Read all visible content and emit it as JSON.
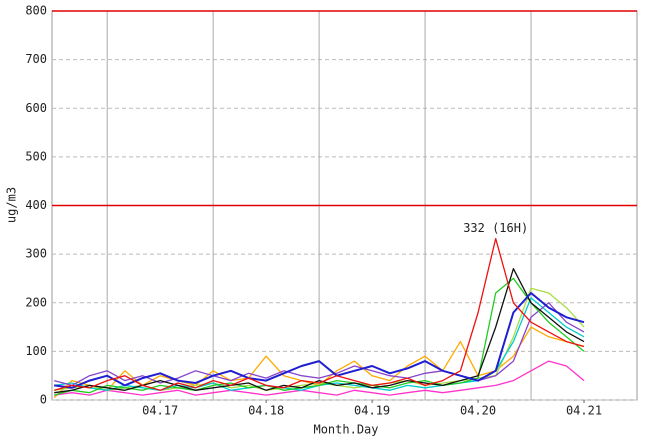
{
  "chart_data": {
    "type": "line",
    "ylabel": "ug/m3",
    "xlabel": "Month.Day",
    "ylim": [
      0,
      800
    ],
    "yticks": [
      0,
      100,
      200,
      300,
      400,
      500,
      600,
      700,
      800
    ],
    "xlim": [
      -12.5,
      120
    ],
    "xticks": [
      {
        "value": 12,
        "label": "04.17"
      },
      {
        "value": 36,
        "label": "04.18"
      },
      {
        "value": 60,
        "label": "04.19"
      },
      {
        "value": 84,
        "label": "04.20"
      },
      {
        "value": 108,
        "label": "04.21"
      }
    ],
    "xgrid": [
      0,
      24,
      48,
      72,
      96
    ],
    "grid": true,
    "hlines": [
      400,
      800
    ],
    "hline_color": "#e00000",
    "annotation": {
      "text": "332 (16H)",
      "x": 88,
      "y": 332
    },
    "x": [
      -12,
      -8,
      -4,
      0,
      4,
      8,
      12,
      16,
      20,
      24,
      28,
      32,
      36,
      40,
      44,
      48,
      52,
      56,
      60,
      64,
      68,
      72,
      76,
      80,
      84,
      88,
      92,
      96,
      100,
      104,
      108
    ],
    "series": [
      {
        "color": "#ffaa00",
        "values": [
          5,
          40,
          30,
          20,
          60,
          30,
          50,
          40,
          30,
          60,
          40,
          45,
          90,
          50,
          40,
          30,
          60,
          80,
          50,
          40,
          70,
          90,
          60,
          120,
          50,
          60,
          90,
          150,
          130,
          120,
          110
        ]
      },
      {
        "color": "#ff33cc",
        "values": [
          10,
          15,
          10,
          20,
          15,
          10,
          15,
          20,
          10,
          15,
          20,
          15,
          10,
          15,
          20,
          15,
          10,
          20,
          15,
          10,
          15,
          20,
          15,
          20,
          25,
          30,
          40,
          60,
          80,
          70,
          40
        ]
      },
      {
        "color": "#aadd44",
        "values": [
          20,
          25,
          30,
          20,
          25,
          30,
          20,
          25,
          30,
          35,
          25,
          30,
          20,
          25,
          30,
          35,
          30,
          25,
          30,
          35,
          40,
          30,
          35,
          40,
          45,
          50,
          130,
          230,
          220,
          190,
          150
        ]
      },
      {
        "color": "#00cccc",
        "values": [
          30,
          35,
          25,
          20,
          30,
          25,
          20,
          30,
          25,
          35,
          20,
          25,
          30,
          25,
          20,
          30,
          35,
          30,
          25,
          20,
          30,
          25,
          30,
          35,
          40,
          60,
          120,
          210,
          180,
          150,
          130
        ]
      },
      {
        "color": "#8844cc",
        "values": [
          40,
          30,
          50,
          60,
          40,
          50,
          35,
          45,
          60,
          50,
          40,
          55,
          45,
          60,
          50,
          45,
          55,
          70,
          60,
          50,
          45,
          55,
          60,
          50,
          40,
          50,
          80,
          170,
          200,
          160,
          140
        ]
      },
      {
        "color": "#22cc22",
        "values": [
          10,
          20,
          15,
          30,
          25,
          20,
          30,
          25,
          20,
          30,
          35,
          25,
          30,
          20,
          25,
          30,
          40,
          35,
          30,
          25,
          35,
          40,
          30,
          35,
          45,
          220,
          250,
          200,
          160,
          130,
          100
        ]
      },
      {
        "color": "#111111",
        "values": [
          15,
          20,
          30,
          25,
          20,
          30,
          40,
          30,
          20,
          25,
          30,
          35,
          20,
          30,
          25,
          40,
          30,
          35,
          25,
          30,
          40,
          35,
          30,
          40,
          50,
          150,
          270,
          200,
          170,
          140,
          120
        ]
      },
      {
        "color": "#1f1fd0",
        "values": [
          30,
          25,
          40,
          50,
          30,
          45,
          55,
          40,
          35,
          50,
          60,
          45,
          40,
          55,
          70,
          80,
          50,
          60,
          70,
          55,
          65,
          80,
          60,
          50,
          40,
          60,
          180,
          220,
          190,
          170,
          160
        ]
      },
      {
        "color": "#ee1111",
        "values": [
          20,
          30,
          25,
          40,
          50,
          30,
          20,
          35,
          25,
          40,
          30,
          45,
          30,
          25,
          40,
          35,
          50,
          40,
          30,
          35,
          45,
          30,
          40,
          60,
          180,
          332,
          200,
          160,
          140,
          120,
          110
        ]
      }
    ]
  }
}
